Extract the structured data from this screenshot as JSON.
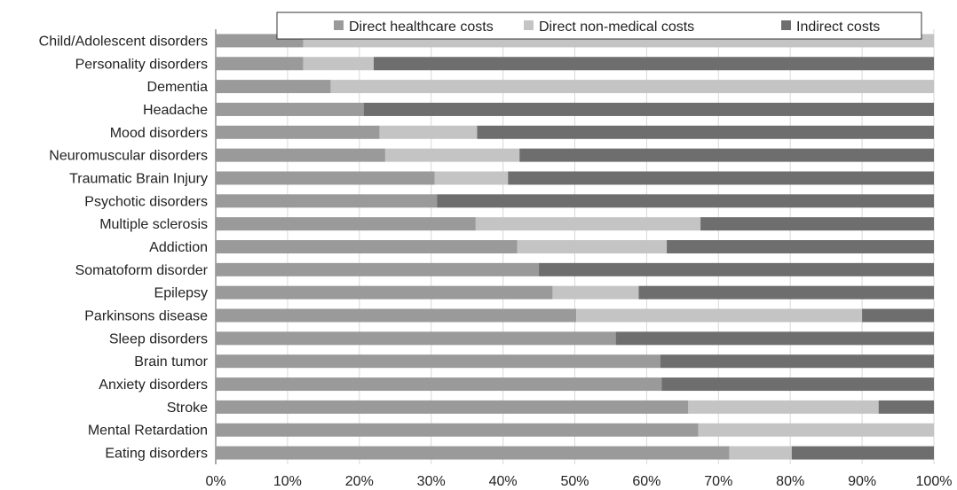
{
  "chart_data": {
    "type": "bar",
    "orientation": "horizontal",
    "stacked": true,
    "title": "",
    "xlabel": "",
    "ylabel": "",
    "xlim": [
      0,
      100
    ],
    "x_ticks": [
      "0%",
      "10%",
      "20%",
      "30%",
      "40%",
      "50%",
      "60%",
      "70%",
      "80%",
      "90%",
      "100%"
    ],
    "grid": true,
    "legend_position": "top-right",
    "categories": [
      "Child/Adolescent disorders",
      "Personality disorders",
      "Dementia",
      "Headache",
      "Mood disorders",
      "Neuromuscular disorders",
      "Traumatic Brain Injury",
      "Psychotic disorders",
      "Multiple sclerosis",
      "Addiction",
      "Somatoform disorder",
      "Epilepsy",
      "Parkinsons disease",
      "Sleep disorders",
      "Brain tumor",
      "Anxiety disorders",
      "Stroke",
      "Mental Retardation",
      "Eating disorders"
    ],
    "series": [
      {
        "name": "Direct healthcare costs",
        "color": "#9a9a9a",
        "values": [
          12.2,
          12.2,
          16.0,
          20.6,
          22.8,
          23.6,
          30.5,
          30.8,
          36.2,
          42.0,
          45.0,
          46.9,
          50.2,
          55.7,
          61.9,
          62.1,
          65.8,
          67.2,
          71.5
        ]
      },
      {
        "name": "Direct non-medical costs",
        "color": "#c4c4c4",
        "values": [
          87.8,
          9.8,
          84.0,
          0.0,
          13.6,
          18.7,
          10.2,
          0.0,
          31.3,
          20.8,
          0.0,
          12.0,
          39.8,
          0.0,
          0.0,
          0.0,
          26.5,
          32.8,
          8.7
        ]
      },
      {
        "name": "Indirect costs",
        "color": "#6e6e6e",
        "values": [
          0.0,
          78.0,
          0.0,
          79.4,
          63.6,
          57.7,
          59.3,
          69.2,
          32.5,
          37.2,
          55.0,
          41.1,
          10.0,
          44.3,
          38.1,
          37.9,
          7.7,
          0.0,
          19.8
        ]
      }
    ]
  }
}
